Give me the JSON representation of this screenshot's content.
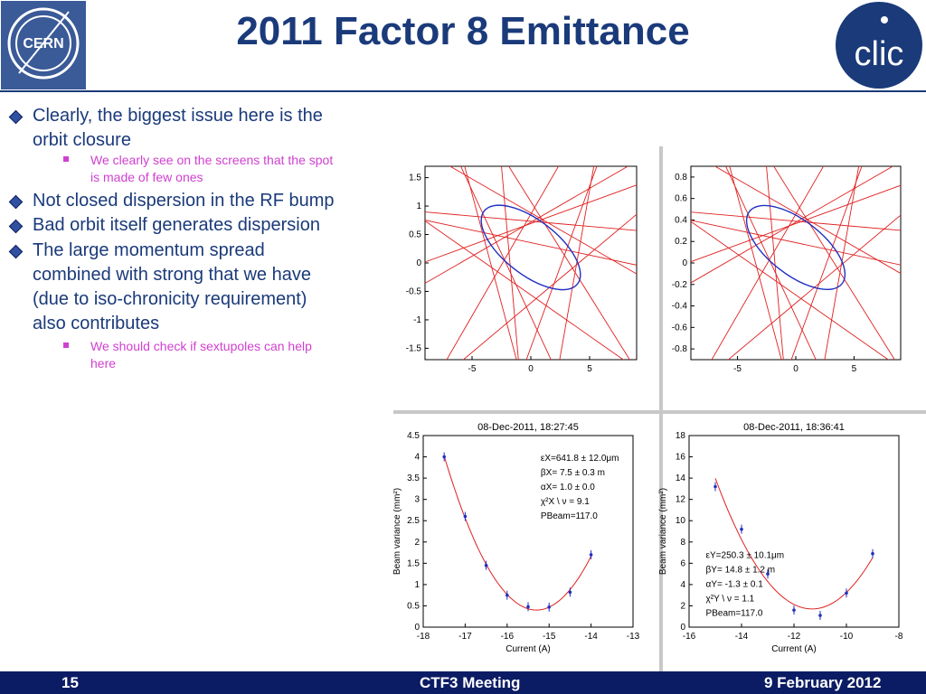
{
  "title": "2011 Factor 8 Emittance",
  "logos": {
    "cern": "CERN",
    "clic": "clic"
  },
  "bullets": [
    {
      "text_line1": "Clearly, the biggest issue here is the",
      "text_line2": "orbit closure"
    },
    {
      "text": "Not closed dispersion in the RF bump"
    },
    {
      "text": "Bad orbit itself generates dispersion"
    },
    {
      "text_line1": "The large momentum spread",
      "text_line2": "combined with strong that we have",
      "text_line3": "(due to iso-chronicity requirement)",
      "text_line4": "also contributes"
    }
  ],
  "subbullets": [
    {
      "line1": "We clearly see on the screens that the spot",
      "line2": "is made of few ones"
    },
    {
      "line1": "We should check if sextupoles can help",
      "line2": "here"
    }
  ],
  "footer": {
    "page": "15",
    "meeting": "CTF3 Meeting",
    "date": "9 February 2012"
  },
  "colors": {
    "title": "#1a3a7a",
    "footer_bg": "#0c1c64",
    "subbullet": "#d040d0",
    "panel_bg": "#c8c8c8"
  },
  "chart_data": [
    {
      "type": "line",
      "title": "",
      "xlabel": "",
      "ylabel": "",
      "xlim": [
        -9,
        9
      ],
      "ylim": [
        -1.7,
        1.7
      ],
      "xticks": [
        "-5",
        "0",
        "5"
      ],
      "yticks": [
        "1.5",
        "1",
        "0.5",
        "0",
        "-0.5",
        "-1",
        "-1.5"
      ],
      "series": [
        {
          "color": "#e02020",
          "kind": "measurement-lines"
        },
        {
          "color": "#2030c0",
          "kind": "fitted-ellipse"
        }
      ]
    },
    {
      "type": "line",
      "title": "",
      "xlabel": "",
      "ylabel": "",
      "xlim": [
        -9,
        9
      ],
      "ylim": [
        -0.9,
        0.9
      ],
      "xticks": [
        "-5",
        "0",
        "5"
      ],
      "yticks": [
        "0.8",
        "0.6",
        "0.4",
        "0.2",
        "0",
        "-0.2",
        "-0.4",
        "-0.6",
        "-0.8"
      ],
      "series": [
        {
          "color": "#e02020",
          "kind": "measurement-lines"
        },
        {
          "color": "#2030c0",
          "kind": "fitted-ellipse"
        }
      ]
    },
    {
      "type": "scatter",
      "title": "08-Dec-2011, 18:27:45",
      "xlabel": "Current (A)",
      "ylabel": "Beam variance (mm²)",
      "xlim": [
        -18,
        -13
      ],
      "ylim": [
        0,
        4.5
      ],
      "xticks": [
        "-18",
        "-17",
        "-16",
        "-15",
        "-14",
        "-13"
      ],
      "yticks": [
        "4.5",
        "4",
        "3.5",
        "3",
        "2.5",
        "2",
        "1.5",
        "1",
        "0.5",
        "0"
      ],
      "x": [
        -17.5,
        -17.0,
        -16.5,
        -16.0,
        -15.5,
        -15.0,
        -14.5,
        -14.0
      ],
      "y": [
        4.0,
        2.6,
        1.45,
        0.75,
        0.48,
        0.47,
        0.82,
        1.7
      ],
      "annotations": [
        "εX=641.8 ± 12.0μm",
        "βX= 7.5 ± 0.3 m",
        "αX= 1.0 ± 0.0",
        "χ²X \\ ν = 9.1",
        "PBeam=117.0"
      ]
    },
    {
      "type": "scatter",
      "title": "08-Dec-2011, 18:36:41",
      "xlabel": "Current (A)",
      "ylabel": "Beam variance (mm²)",
      "xlim": [
        -16,
        -8
      ],
      "ylim": [
        0,
        18
      ],
      "xticks": [
        "-16",
        "-14",
        "-12",
        "-10",
        "-8"
      ],
      "yticks": [
        "18",
        "16",
        "14",
        "12",
        "10",
        "8",
        "6",
        "4",
        "2",
        "0"
      ],
      "x": [
        -15.0,
        -14.0,
        -13.0,
        -12.0,
        -11.0,
        -10.0,
        -9.0
      ],
      "y": [
        13.2,
        9.2,
        5.0,
        1.6,
        1.1,
        3.2,
        6.9
      ],
      "annotations": [
        "εY=250.3 ± 10.1μm",
        "βY= 14.8 ± 1.2 m",
        "αY= -1.3 ± 0.1",
        "χ²Y \\ ν = 1.1",
        "PBeam=117.0"
      ]
    }
  ]
}
